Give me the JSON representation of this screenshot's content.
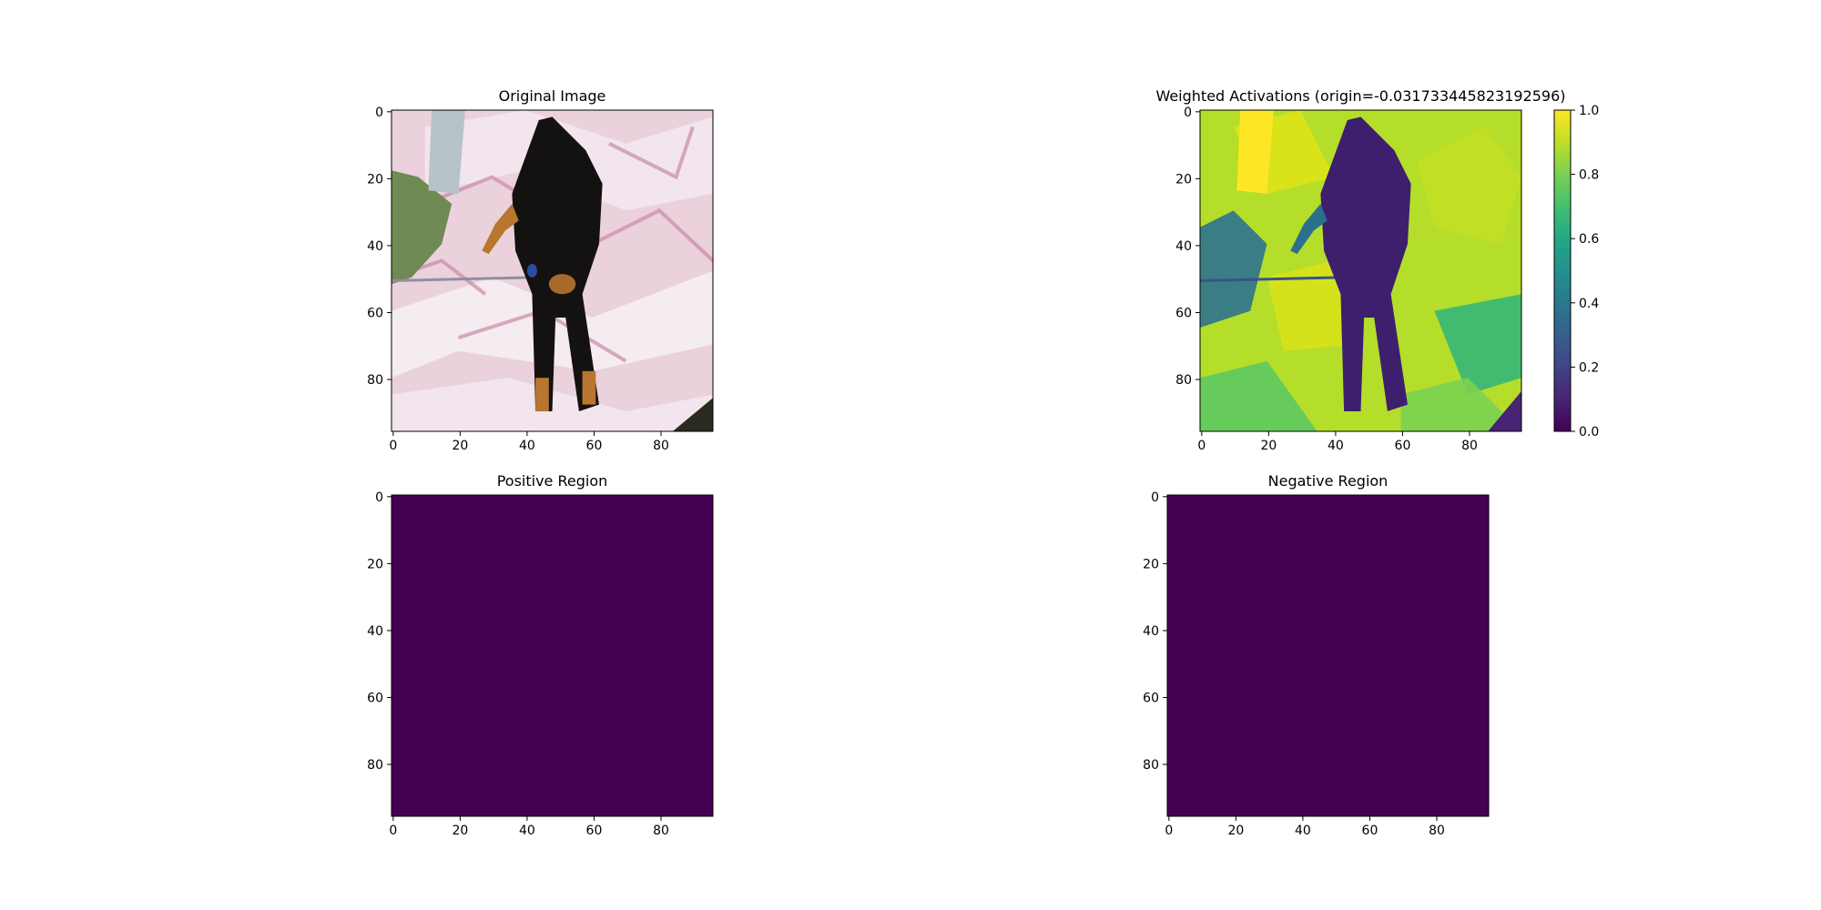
{
  "figure": {
    "background": "#ffffff"
  },
  "chart_data": [
    {
      "type": "heatmap",
      "title": "Original Image",
      "content": "rgb-photo",
      "colorbar": false,
      "xlim": [
        -0.5,
        95.5
      ],
      "ylim": [
        95.5,
        -0.5
      ],
      "xticks": [
        0,
        20,
        40,
        60,
        80
      ],
      "yticks": [
        0,
        20,
        40,
        60,
        80
      ],
      "xtick_labels": [
        "0",
        "20",
        "40",
        "60",
        "80"
      ],
      "ytick_labels": [
        "0",
        "20",
        "40",
        "60",
        "80"
      ]
    },
    {
      "type": "heatmap",
      "title": "Weighted Activations (origin=-0.031733445823192596)",
      "content": "activation-map",
      "colormap": "viridis",
      "colorbar": true,
      "colorbar_range": [
        0.0,
        1.0
      ],
      "colorbar_ticks": [
        0.0,
        0.2,
        0.4,
        0.6,
        0.8,
        1.0
      ],
      "colorbar_tick_labels": [
        "0.0",
        "0.2",
        "0.4",
        "0.6",
        "0.8",
        "1.0"
      ],
      "xlim": [
        -0.5,
        95.5
      ],
      "ylim": [
        95.5,
        -0.5
      ],
      "xticks": [
        0,
        20,
        40,
        60,
        80
      ],
      "yticks": [
        0,
        20,
        40,
        60,
        80
      ],
      "xtick_labels": [
        "0",
        "20",
        "40",
        "60",
        "80"
      ],
      "ytick_labels": [
        "0",
        "20",
        "40",
        "60",
        "80"
      ]
    },
    {
      "type": "heatmap",
      "title": "Positive Region",
      "content": "uniform",
      "fill_color": "#440154",
      "colorbar": false,
      "xlim": [
        -0.5,
        95.5
      ],
      "ylim": [
        95.5,
        -0.5
      ],
      "xticks": [
        0,
        20,
        40,
        60,
        80
      ],
      "yticks": [
        0,
        20,
        40,
        60,
        80
      ],
      "xtick_labels": [
        "0",
        "20",
        "40",
        "60",
        "80"
      ],
      "ytick_labels": [
        "0",
        "20",
        "40",
        "60",
        "80"
      ]
    },
    {
      "type": "heatmap",
      "title": "Negative Region",
      "content": "uniform",
      "fill_color": "#440154",
      "colorbar": false,
      "xlim": [
        -0.5,
        95.5
      ],
      "ylim": [
        95.5,
        -0.5
      ],
      "xticks": [
        0,
        20,
        40,
        60,
        80
      ],
      "yticks": [
        0,
        20,
        40,
        60,
        80
      ],
      "xtick_labels": [
        "0",
        "20",
        "40",
        "60",
        "80"
      ],
      "ytick_labels": [
        "0",
        "20",
        "40",
        "60",
        "80"
      ]
    }
  ]
}
